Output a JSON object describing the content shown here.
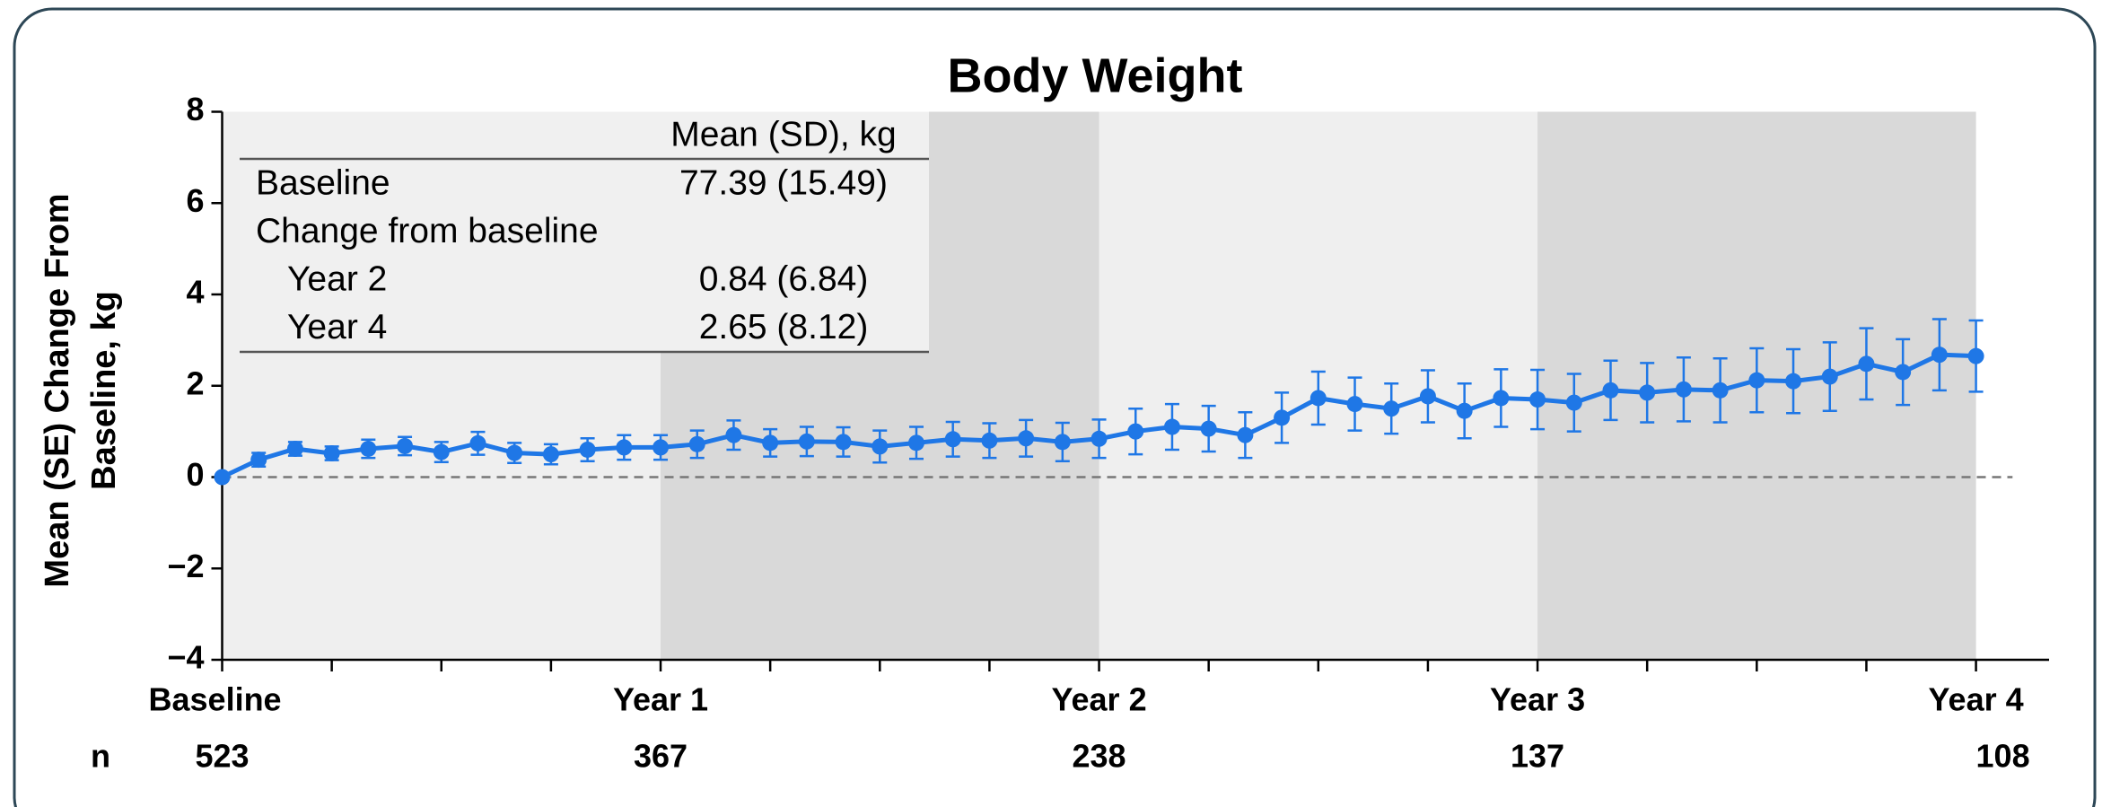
{
  "chart_data": {
    "type": "line",
    "title": "Body Weight",
    "ylabel": [
      "Mean (SE) Change From",
      "Baseline, kg"
    ],
    "x": [
      0,
      1,
      2,
      3,
      4,
      5,
      6,
      7,
      8,
      9,
      10,
      11,
      12,
      13,
      14,
      15,
      16,
      17,
      18,
      19,
      20,
      21,
      22,
      23,
      24,
      25,
      26,
      27,
      28,
      29,
      30,
      31,
      32,
      33,
      34,
      35,
      36,
      37,
      38,
      39,
      40,
      41,
      42,
      43,
      44,
      45,
      46,
      47,
      48
    ],
    "series": [
      {
        "color": "#1f77e6",
        "values": [
          0,
          0.38,
          0.62,
          0.52,
          0.62,
          0.68,
          0.55,
          0.74,
          0.53,
          0.5,
          0.6,
          0.65,
          0.65,
          0.72,
          0.92,
          0.75,
          0.78,
          0.77,
          0.67,
          0.75,
          0.83,
          0.8,
          0.85,
          0.77,
          0.84,
          1.0,
          1.1,
          1.06,
          0.92,
          1.3,
          1.73,
          1.6,
          1.5,
          1.77,
          1.45,
          1.73,
          1.7,
          1.63,
          1.9,
          1.85,
          1.92,
          1.9,
          2.12,
          2.1,
          2.2,
          2.48,
          2.3,
          2.68,
          2.65
        ],
        "errors": [
          0,
          0.15,
          0.15,
          0.15,
          0.2,
          0.2,
          0.22,
          0.25,
          0.22,
          0.22,
          0.25,
          0.27,
          0.27,
          0.3,
          0.32,
          0.3,
          0.32,
          0.32,
          0.35,
          0.35,
          0.38,
          0.38,
          0.4,
          0.42,
          0.42,
          0.5,
          0.5,
          0.5,
          0.5,
          0.55,
          0.58,
          0.58,
          0.55,
          0.57,
          0.6,
          0.63,
          0.65,
          0.63,
          0.65,
          0.65,
          0.7,
          0.7,
          0.7,
          0.7,
          0.75,
          0.78,
          0.72,
          0.78,
          0.78
        ]
      }
    ],
    "xlim": [
      0,
      50
    ],
    "xticks": [
      {
        "value": 0,
        "label": "Baseline"
      },
      {
        "value": 12,
        "label": "Year 1"
      },
      {
        "value": 24,
        "label": "Year 2"
      },
      {
        "value": 36,
        "label": "Year 3"
      },
      {
        "value": 48,
        "label": "Year 4"
      }
    ],
    "minor_xticks": [
      3,
      6,
      9,
      15,
      18,
      21,
      27,
      30,
      33,
      39,
      42,
      45
    ],
    "ylim": [
      -4,
      8
    ],
    "yticks": [
      {
        "value": -4,
        "label": "−4"
      },
      {
        "value": -2,
        "label": "−2"
      },
      0,
      2,
      4,
      6,
      8
    ],
    "reference_line": 0,
    "n_label": "n",
    "n_values": [
      523,
      367,
      238,
      137,
      108
    ],
    "inset_table": {
      "header": "Mean (SD), kg",
      "rows": [
        [
          "Baseline",
          "77.39 (15.49)"
        ],
        [
          "Change from baseline"
        ],
        [
          "Year 2",
          "0.84 (6.84)"
        ],
        [
          "Year 4",
          "2.65 (8.12)"
        ]
      ]
    }
  }
}
